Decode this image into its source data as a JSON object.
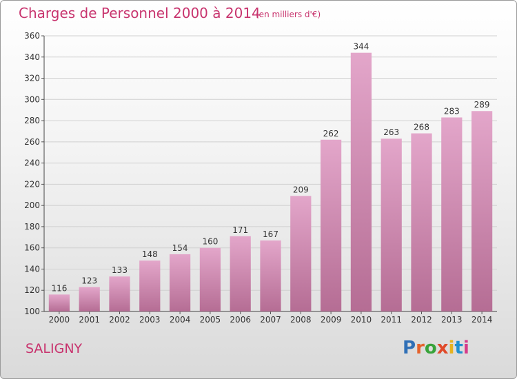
{
  "header": {
    "title": "Charges de Personnel 2000 à 2014",
    "unit_note": "(en milliers d'€)"
  },
  "footer": {
    "commune": "SALIGNY",
    "brand": "Proxiti"
  },
  "colors": {
    "bar_top": "#e3a6ca",
    "bar_bottom": "#b56d94",
    "title": "#c8346e",
    "grid": "#d0d0d0"
  },
  "chart_data": {
    "type": "bar",
    "categories": [
      "2000",
      "2001",
      "2002",
      "2003",
      "2004",
      "2005",
      "2006",
      "2007",
      "2008",
      "2009",
      "2010",
      "2011",
      "2012",
      "2013",
      "2014"
    ],
    "values": [
      116,
      123,
      133,
      148,
      154,
      160,
      171,
      167,
      209,
      262,
      344,
      263,
      268,
      283,
      289
    ],
    "title": "Charges de Personnel 2000 à 2014",
    "ylim": [
      100,
      360
    ],
    "yticks": [
      100,
      120,
      140,
      160,
      180,
      200,
      220,
      240,
      260,
      280,
      300,
      320,
      340,
      360
    ],
    "grid": true,
    "show_value_labels": true
  }
}
